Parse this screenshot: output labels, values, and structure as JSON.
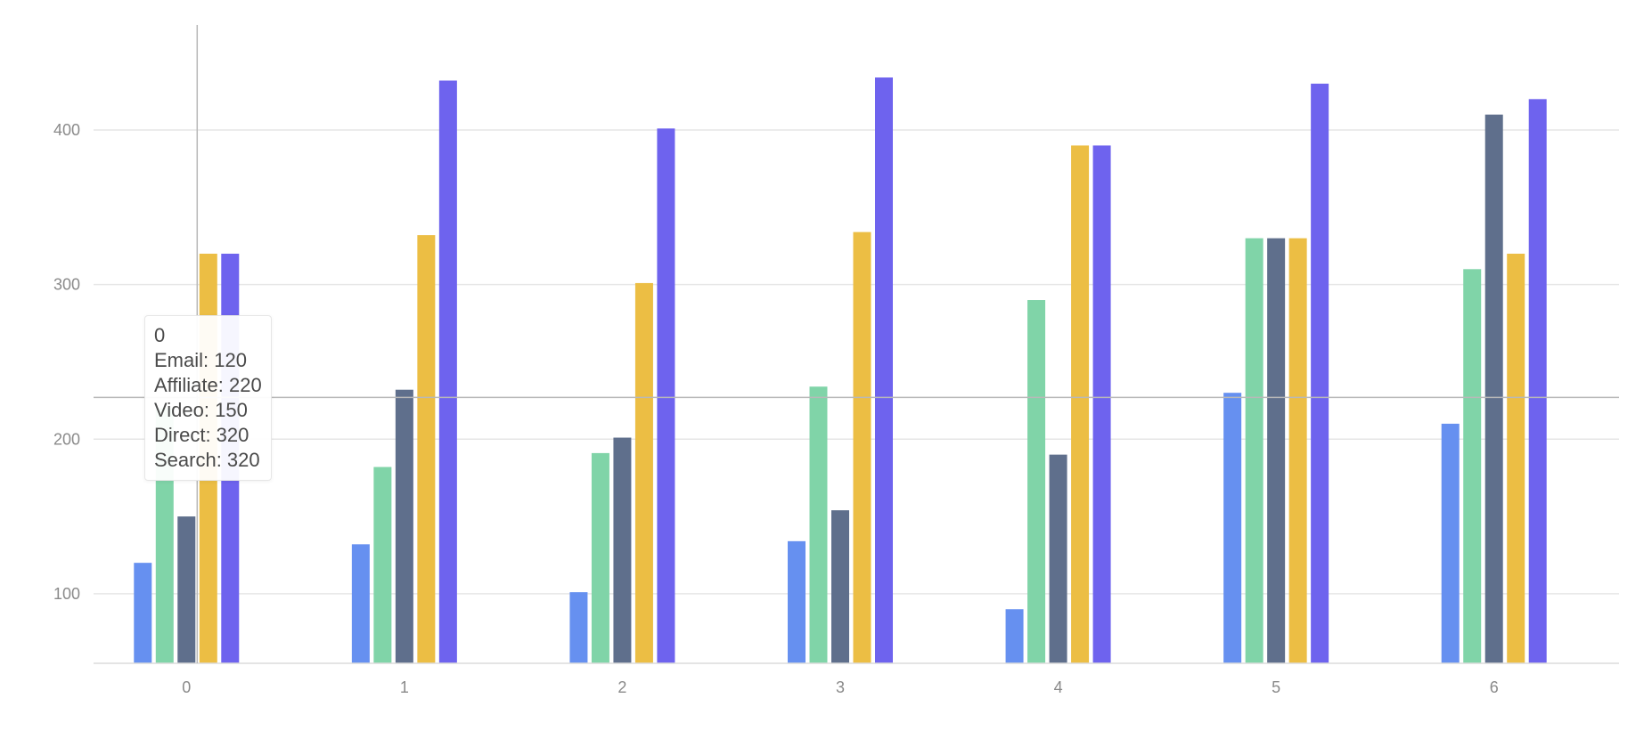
{
  "chart_data": {
    "type": "bar",
    "categories": [
      "0",
      "1",
      "2",
      "3",
      "4",
      "5",
      "6"
    ],
    "series": [
      {
        "name": "Email",
        "color": "#6690f0",
        "values": [
          120,
          132,
          101,
          134,
          90,
          230,
          210
        ]
      },
      {
        "name": "Affiliate",
        "color": "#80d4a8",
        "values": [
          220,
          182,
          191,
          234,
          290,
          330,
          310
        ]
      },
      {
        "name": "Video",
        "color": "#5f6f8c",
        "values": [
          150,
          232,
          201,
          154,
          190,
          330,
          410
        ]
      },
      {
        "name": "Direct",
        "color": "#ecbe44",
        "values": [
          320,
          332,
          301,
          334,
          390,
          330,
          320
        ]
      },
      {
        "name": "Search",
        "color": "#6e63ee",
        "values": [
          320,
          432,
          401,
          434,
          390,
          430,
          420
        ]
      }
    ],
    "yticks": [
      100,
      200,
      300,
      400
    ],
    "ylim": [
      55,
      468
    ],
    "grid": true,
    "legend": "none",
    "tooltip": {
      "title": "0",
      "lines": [
        "Email: 120",
        "Affiliate: 220",
        "Video: 150",
        "Direct: 320",
        "Search: 320"
      ]
    },
    "crosshair": {
      "category": "0",
      "y": 227
    }
  }
}
